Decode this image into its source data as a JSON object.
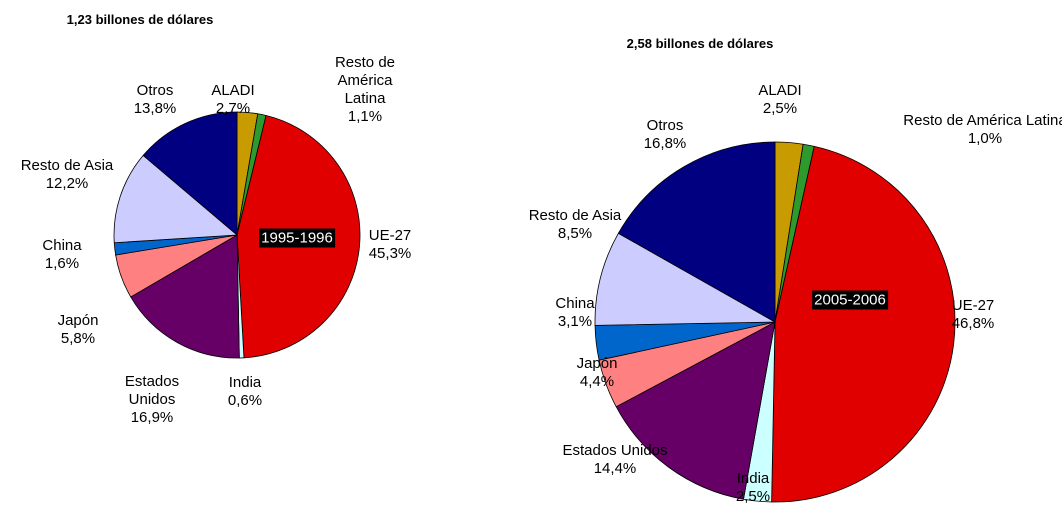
{
  "chart_data": [
    {
      "type": "pie",
      "title": "1,23 billones de dólares",
      "period": "1995-1996",
      "categories": [
        "ALADI",
        "Resto de América Latina",
        "UE-27",
        "India",
        "Estados Unidos",
        "Japón",
        "China",
        "Resto de Asia",
        "Otros"
      ],
      "values": [
        2.7,
        1.1,
        45.3,
        0.6,
        16.9,
        5.8,
        1.6,
        12.2,
        13.8
      ],
      "value_labels": [
        "2,7%",
        "1,1%",
        "45,3%",
        "0,6%",
        "16,9%",
        "5,8%",
        "1,6%",
        "12,2%",
        "13,8%"
      ],
      "colors": [
        "#c89b00",
        "#2e9a2e",
        "#e00000",
        "#ccffff",
        "#660066",
        "#ff8080",
        "#0066cc",
        "#ccccff",
        "#000080"
      ]
    },
    {
      "type": "pie",
      "title": "2,58 billones de dólares",
      "period": "2005-2006",
      "categories": [
        "ALADI",
        "Resto de América Latina",
        "UE-27",
        "India",
        "Estados Unidos",
        "Japón",
        "China",
        "Resto de Asia",
        "Otros"
      ],
      "values": [
        2.5,
        1.0,
        46.8,
        2.5,
        14.4,
        4.4,
        3.1,
        8.5,
        16.8
      ],
      "value_labels": [
        "2,5%",
        "1,0%",
        "46,8%",
        "2,5%",
        "14,4%",
        "4,4%",
        "3,1%",
        "8,5%",
        "16,8%"
      ],
      "colors": [
        "#c89b00",
        "#2e9a2e",
        "#e00000",
        "#ccffff",
        "#660066",
        "#ff8080",
        "#0066cc",
        "#ccccff",
        "#000080"
      ]
    }
  ]
}
